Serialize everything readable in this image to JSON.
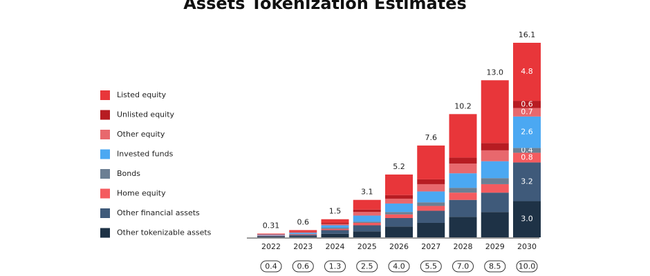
{
  "chart_data": {
    "type": "stacked_bar",
    "title": "Assets Tokenization Estimates",
    "categories": [
      "2022",
      "2023",
      "2024",
      "2025",
      "2026",
      "2027",
      "2028",
      "2029",
      "2030"
    ],
    "totals": [
      0.31,
      0.6,
      1.5,
      3.1,
      5.2,
      7.6,
      10.2,
      13.0,
      16.1
    ],
    "total_labels": [
      "0.31",
      "0.6",
      "1.5",
      "3.1",
      "5.2",
      "7.6",
      "10.2",
      "13.0",
      "16.1"
    ],
    "secondary_labels": [
      "0.4",
      "0.6",
      "1.3",
      "2.5",
      "4.0",
      "5.5",
      "7.0",
      "8.5",
      "10.0"
    ],
    "ylim": [
      0,
      16.5
    ],
    "series": [
      {
        "name": "Listed equity",
        "color": "#e8363a",
        "values": [
          0.05,
          0.13,
          0.3,
          0.8,
          1.7,
          2.8,
          3.6,
          5.2,
          4.8
        ],
        "value_labels": [
          null,
          null,
          null,
          null,
          null,
          null,
          null,
          null,
          "4.8"
        ]
      },
      {
        "name": "Unlisted equity",
        "color": "#b71c22",
        "values": [
          0.02,
          0.04,
          0.1,
          0.2,
          0.3,
          0.4,
          0.5,
          0.6,
          0.6
        ],
        "value_labels": [
          null,
          null,
          null,
          null,
          null,
          null,
          null,
          null,
          "0.6"
        ]
      },
      {
        "name": "Other equity",
        "color": "#e8686d",
        "values": [
          0.03,
          0.05,
          0.1,
          0.3,
          0.4,
          0.6,
          0.8,
          0.9,
          0.7
        ],
        "value_labels": [
          null,
          null,
          null,
          null,
          null,
          null,
          null,
          null,
          "0.7"
        ]
      },
      {
        "name": "Invested funds",
        "color": "#4ba8f2",
        "values": [
          0.05,
          0.1,
          0.2,
          0.5,
          0.7,
          0.9,
          1.2,
          1.4,
          2.6
        ],
        "value_labels": [
          null,
          null,
          null,
          null,
          null,
          null,
          null,
          null,
          "2.6"
        ]
      },
      {
        "name": "Bonds",
        "color": "#6b7f93",
        "values": [
          0.02,
          0.03,
          0.1,
          0.1,
          0.2,
          0.3,
          0.4,
          0.5,
          0.4
        ],
        "value_labels": [
          null,
          null,
          null,
          null,
          null,
          null,
          null,
          null,
          "0.4"
        ]
      },
      {
        "name": "Home equity",
        "color": "#f45b5f",
        "values": [
          0.03,
          0.05,
          0.1,
          0.2,
          0.3,
          0.4,
          0.6,
          0.7,
          0.8
        ],
        "value_labels": [
          null,
          null,
          null,
          null,
          null,
          null,
          null,
          null,
          "0.8"
        ]
      },
      {
        "name": "Other financial assets",
        "color": "#3f5a7a",
        "values": [
          0.05,
          0.1,
          0.3,
          0.5,
          0.7,
          1.0,
          1.4,
          1.6,
          3.2
        ],
        "value_labels": [
          null,
          null,
          null,
          null,
          null,
          null,
          null,
          null,
          "3.2"
        ]
      },
      {
        "name": "Other tokenizable assets",
        "color": "#1e3246",
        "values": [
          0.06,
          0.1,
          0.3,
          0.5,
          0.9,
          1.2,
          1.7,
          2.1,
          3.0
        ],
        "value_labels": [
          null,
          null,
          null,
          null,
          null,
          null,
          null,
          null,
          "3.0"
        ]
      }
    ]
  }
}
